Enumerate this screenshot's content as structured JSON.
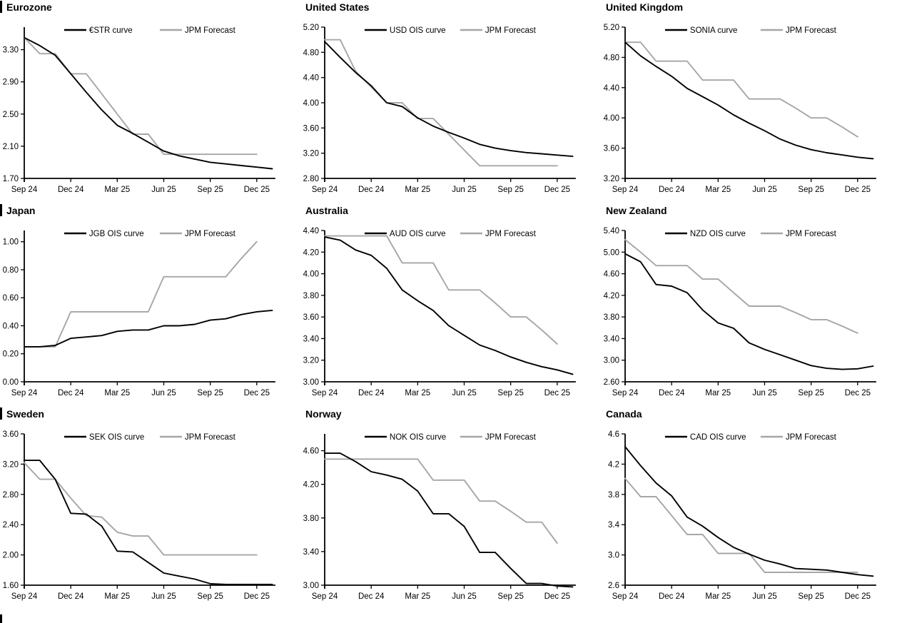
{
  "axis": {
    "x_labels": [
      "Sep 24",
      "Dec 24",
      "Mar 25",
      "Jun 25",
      "Sep 25",
      "Dec 25"
    ],
    "x_tick_months": [
      0,
      3,
      6,
      9,
      12,
      15
    ],
    "x_months_total": 16.2
  },
  "colors": {
    "ois_line": "#000000",
    "forecast_line": "#A6A6A6",
    "axis_line": "#000000",
    "text": "#000000",
    "section_marker": "#000000"
  },
  "chart_data": [
    {
      "type": "line",
      "title": "Eurozone",
      "section_bar": true,
      "ylim": [
        1.7,
        3.58
      ],
      "yticks": [
        1.7,
        2.1,
        2.5,
        2.9,
        3.3
      ],
      "ydecimals": 2,
      "grid": false,
      "legend_position": "top-center",
      "series": [
        {
          "name": "€STR curve",
          "role": "ois",
          "values": [
            3.45,
            3.35,
            3.23,
            3.0,
            2.77,
            2.55,
            2.36,
            2.26,
            2.15,
            2.04,
            1.98,
            1.94,
            1.9,
            1.88,
            1.86,
            1.84,
            1.82
          ]
        },
        {
          "name": "JPM Forecast",
          "role": "forecast",
          "values": [
            3.45,
            3.25,
            3.25,
            3.0,
            3.0,
            2.75,
            2.5,
            2.25,
            2.25,
            2.0,
            2.0,
            2.0,
            2.0,
            2.0,
            2.0,
            2.0
          ]
        }
      ]
    },
    {
      "type": "line",
      "title": "United States",
      "section_bar": false,
      "ylim": [
        2.8,
        5.2
      ],
      "yticks": [
        2.8,
        3.2,
        3.6,
        4.0,
        4.4,
        4.8,
        5.2
      ],
      "ydecimals": 2,
      "grid": false,
      "legend_position": "top-center",
      "series": [
        {
          "name": "USD OIS curve",
          "role": "ois",
          "values": [
            4.97,
            4.72,
            4.48,
            4.27,
            4.0,
            3.94,
            3.76,
            3.63,
            3.53,
            3.44,
            3.34,
            3.28,
            3.24,
            3.21,
            3.19,
            3.17,
            3.15
          ]
        },
        {
          "name": "JPM Forecast",
          "role": "forecast",
          "values": [
            5.0,
            5.0,
            4.5,
            4.25,
            4.0,
            4.0,
            3.75,
            3.75,
            3.5,
            3.25,
            3.0,
            3.0,
            3.0,
            3.0,
            3.0,
            3.0
          ]
        }
      ]
    },
    {
      "type": "line",
      "title": "United Kingdom",
      "section_bar": false,
      "ylim": [
        3.2,
        5.2
      ],
      "yticks": [
        3.2,
        3.6,
        4.0,
        4.4,
        4.8,
        5.2
      ],
      "ydecimals": 2,
      "grid": false,
      "legend_position": "top-center",
      "series": [
        {
          "name": "SONIA curve",
          "role": "ois",
          "values": [
            5.0,
            4.82,
            4.68,
            4.55,
            4.39,
            4.28,
            4.17,
            4.04,
            3.93,
            3.83,
            3.72,
            3.64,
            3.58,
            3.54,
            3.51,
            3.48,
            3.46
          ]
        },
        {
          "name": "JPM Forecast",
          "role": "forecast",
          "values": [
            5.0,
            5.0,
            4.75,
            4.75,
            4.75,
            4.5,
            4.5,
            4.5,
            4.25,
            4.25,
            4.25,
            4.13,
            4.0,
            4.0,
            3.88,
            3.75
          ]
        }
      ]
    },
    {
      "type": "line",
      "title": "Japan",
      "section_bar": true,
      "ylim": [
        0.0,
        1.08
      ],
      "yticks": [
        0.0,
        0.2,
        0.4,
        0.6,
        0.8,
        1.0
      ],
      "ydecimals": 2,
      "grid": false,
      "legend_position": "top-center",
      "series": [
        {
          "name": "JGB OIS curve",
          "role": "ois",
          "values": [
            0.25,
            0.25,
            0.26,
            0.31,
            0.32,
            0.33,
            0.36,
            0.37,
            0.37,
            0.4,
            0.4,
            0.41,
            0.44,
            0.45,
            0.48,
            0.5,
            0.51
          ]
        },
        {
          "name": "JPM Forecast",
          "role": "forecast",
          "values": [
            0.25,
            0.25,
            0.25,
            0.5,
            0.5,
            0.5,
            0.5,
            0.5,
            0.5,
            0.75,
            0.75,
            0.75,
            0.75,
            0.75,
            0.88,
            1.0
          ]
        }
      ]
    },
    {
      "type": "line",
      "title": "Australia",
      "section_bar": false,
      "ylim": [
        3.0,
        4.4
      ],
      "yticks": [
        3.0,
        3.2,
        3.4,
        3.6,
        3.8,
        4.0,
        4.2,
        4.4
      ],
      "ydecimals": 2,
      "grid": false,
      "legend_position": "top-center",
      "series": [
        {
          "name": "AUD OIS curve",
          "role": "ois",
          "values": [
            4.34,
            4.31,
            4.22,
            4.17,
            4.05,
            3.85,
            3.75,
            3.66,
            3.52,
            3.43,
            3.34,
            3.29,
            3.23,
            3.18,
            3.14,
            3.11,
            3.07
          ]
        },
        {
          "name": "JPM Forecast",
          "role": "forecast",
          "values": [
            4.35,
            4.35,
            4.35,
            4.35,
            4.35,
            4.1,
            4.1,
            4.1,
            3.85,
            3.85,
            3.85,
            3.73,
            3.6,
            3.6,
            3.48,
            3.35
          ]
        }
      ]
    },
    {
      "type": "line",
      "title": "New Zealand",
      "section_bar": false,
      "ylim": [
        2.6,
        5.4
      ],
      "yticks": [
        2.6,
        3.0,
        3.4,
        3.8,
        4.2,
        4.6,
        5.0,
        5.4
      ],
      "ydecimals": 2,
      "grid": false,
      "legend_position": "top-center",
      "series": [
        {
          "name": "NZD OIS curve",
          "role": "ois",
          "values": [
            4.97,
            4.82,
            4.4,
            4.37,
            4.25,
            3.93,
            3.69,
            3.59,
            3.32,
            3.2,
            3.1,
            3.0,
            2.9,
            2.85,
            2.83,
            2.84,
            2.89
          ]
        },
        {
          "name": "JPM Forecast",
          "role": "forecast",
          "values": [
            5.23,
            5.0,
            4.75,
            4.75,
            4.75,
            4.5,
            4.5,
            4.25,
            4.0,
            4.0,
            4.0,
            3.88,
            3.75,
            3.75,
            3.63,
            3.5
          ]
        }
      ]
    },
    {
      "type": "line",
      "title": "Sweden",
      "section_bar": true,
      "ylim": [
        1.6,
        3.6
      ],
      "yticks": [
        1.6,
        2.0,
        2.4,
        2.8,
        3.2,
        3.6
      ],
      "ydecimals": 2,
      "grid": false,
      "legend_position": "top-center",
      "series": [
        {
          "name": "SEK OIS curve",
          "role": "ois",
          "values": [
            3.25,
            3.25,
            3.0,
            2.55,
            2.54,
            2.38,
            2.05,
            2.04,
            1.9,
            1.76,
            1.72,
            1.68,
            1.62,
            1.61,
            1.61,
            1.61,
            1.61
          ]
        },
        {
          "name": "JPM Forecast",
          "role": "forecast",
          "values": [
            3.22,
            3.0,
            3.0,
            2.75,
            2.52,
            2.5,
            2.3,
            2.25,
            2.25,
            2.0,
            2.0,
            2.0,
            2.0,
            2.0,
            2.0,
            2.0
          ]
        }
      ]
    },
    {
      "type": "line",
      "title": "Norway",
      "section_bar": false,
      "ylim": [
        3.0,
        4.8
      ],
      "yticks": [
        3.0,
        3.4,
        3.8,
        4.2,
        4.6
      ],
      "ydecimals": 2,
      "grid": false,
      "legend_position": "top-center",
      "series": [
        {
          "name": "NOK OIS curve",
          "role": "ois",
          "values": [
            4.57,
            4.57,
            4.47,
            4.35,
            4.31,
            4.26,
            4.12,
            3.85,
            3.85,
            3.7,
            3.39,
            3.39,
            3.2,
            3.02,
            3.02,
            2.99,
            2.98
          ]
        },
        {
          "name": "JPM Forecast",
          "role": "forecast",
          "values": [
            4.5,
            4.5,
            4.5,
            4.5,
            4.5,
            4.5,
            4.5,
            4.25,
            4.25,
            4.25,
            4.0,
            4.0,
            3.88,
            3.75,
            3.75,
            3.5
          ]
        }
      ]
    },
    {
      "type": "line",
      "title": "Canada",
      "section_bar": false,
      "ylim": [
        2.6,
        4.6
      ],
      "yticks": [
        2.6,
        3.0,
        3.4,
        3.8,
        4.2,
        4.6
      ],
      "ydecimals": 1,
      "grid": false,
      "legend_position": "top-center",
      "series": [
        {
          "name": "CAD OIS curve",
          "role": "ois",
          "values": [
            4.43,
            4.18,
            3.95,
            3.78,
            3.5,
            3.38,
            3.23,
            3.1,
            3.01,
            2.93,
            2.88,
            2.82,
            2.81,
            2.8,
            2.77,
            2.74,
            2.72
          ]
        },
        {
          "name": "JPM Forecast",
          "role": "forecast",
          "values": [
            4.01,
            3.77,
            3.77,
            3.52,
            3.27,
            3.27,
            3.02,
            3.02,
            3.02,
            2.77,
            2.77,
            2.77,
            2.77,
            2.77,
            2.77,
            2.77
          ]
        }
      ]
    }
  ]
}
